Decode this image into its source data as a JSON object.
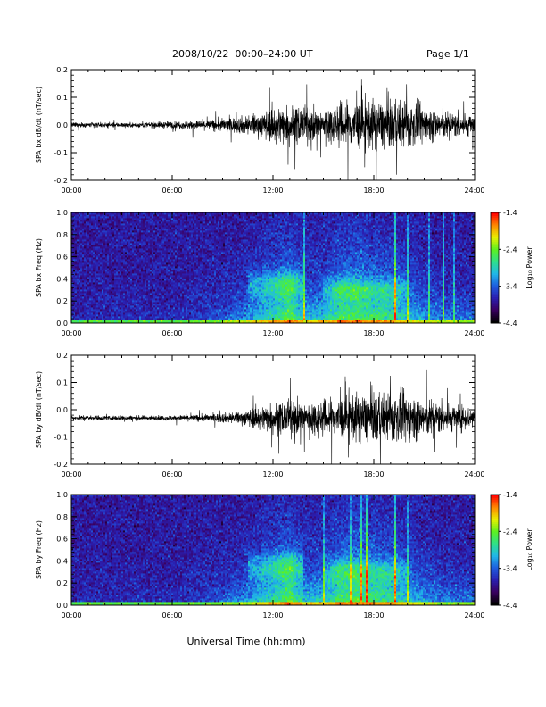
{
  "header": {
    "title": "2008/10/22  00:00–24:00 UT",
    "page": "Page 1/1"
  },
  "x_axis_label": "Universal Time (hh:mm)",
  "colors": {
    "trace": "#000000",
    "colormap": [
      "#000000",
      "#3a0060",
      "#2a1fb0",
      "#1f5de0",
      "#20b8e8",
      "#2fe08a",
      "#5cf020",
      "#e8f000",
      "#ff8a00",
      "#ff0000"
    ]
  },
  "chart_data": [
    {
      "type": "line",
      "ylabel": "SPA bx dB/dt (nT/sec)",
      "xlim": [
        0,
        24
      ],
      "ylim": [
        -0.2,
        0.2
      ],
      "x_ticks": [
        "00:00",
        "06:00",
        "12:00",
        "18:00",
        "24:00"
      ],
      "y_ticks": [
        "-0.2",
        "-0.1",
        "0.0",
        "0.1",
        "0.2"
      ],
      "envelope": {
        "hours": [
          0,
          2,
          4,
          6,
          8,
          10,
          11,
          12,
          13,
          14,
          15,
          16,
          17,
          18,
          19,
          20,
          21,
          22,
          23,
          24
        ],
        "amplitude": [
          0.02,
          0.02,
          0.02,
          0.03,
          0.04,
          0.07,
          0.09,
          0.15,
          0.17,
          0.14,
          0.14,
          0.19,
          0.2,
          0.2,
          0.2,
          0.19,
          0.15,
          0.12,
          0.1,
          0.09
        ],
        "offset": 0.0
      }
    },
    {
      "type": "heatmap",
      "ylabel": "SPA bx Freq (Hz)",
      "xlim": [
        0,
        24
      ],
      "ylim": [
        0,
        1.0
      ],
      "x_ticks": [
        "00:00",
        "06:00",
        "12:00",
        "18:00",
        "24:00"
      ],
      "y_ticks": [
        "0.0",
        "0.2",
        "0.4",
        "0.6",
        "0.8",
        "1.0"
      ],
      "colorbar": {
        "label": "Log₁₀ Power",
        "range": [
          -4.4,
          -1.4
        ],
        "ticks": [
          "-1.4",
          "-2.4",
          "-3.4",
          "-4.4"
        ]
      }
    },
    {
      "type": "line",
      "ylabel": "SPA by dB/dt (nT/sec)",
      "xlim": [
        0,
        24
      ],
      "ylim": [
        -0.2,
        0.2
      ],
      "x_ticks": [
        "00:00",
        "06:00",
        "12:00",
        "18:00",
        "24:00"
      ],
      "y_ticks": [
        "-0.2",
        "-0.1",
        "0.0",
        "0.1",
        "0.2"
      ],
      "envelope": {
        "hours": [
          0,
          2,
          4,
          6,
          8,
          10,
          11,
          12,
          13,
          14,
          15,
          16,
          17,
          18,
          19,
          20,
          21,
          22,
          23,
          24
        ],
        "amplitude": [
          0.02,
          0.02,
          0.02,
          0.02,
          0.03,
          0.05,
          0.09,
          0.13,
          0.14,
          0.15,
          0.15,
          0.18,
          0.2,
          0.2,
          0.2,
          0.2,
          0.17,
          0.13,
          0.11,
          0.09
        ],
        "offset": -0.03
      }
    },
    {
      "type": "heatmap",
      "ylabel": "SPA by Freq (Hz)",
      "xlim": [
        0,
        24
      ],
      "ylim": [
        0,
        1.0
      ],
      "x_ticks": [
        "00:00",
        "06:00",
        "12:00",
        "18:00",
        "24:00"
      ],
      "y_ticks": [
        "0.0",
        "0.2",
        "0.4",
        "0.6",
        "0.8",
        "1.0"
      ],
      "colorbar": {
        "label": "Log₁₀ Power",
        "range": [
          -4.4,
          -1.4
        ],
        "ticks": [
          "-1.4",
          "-2.4",
          "-3.4",
          "-4.4"
        ]
      }
    }
  ]
}
